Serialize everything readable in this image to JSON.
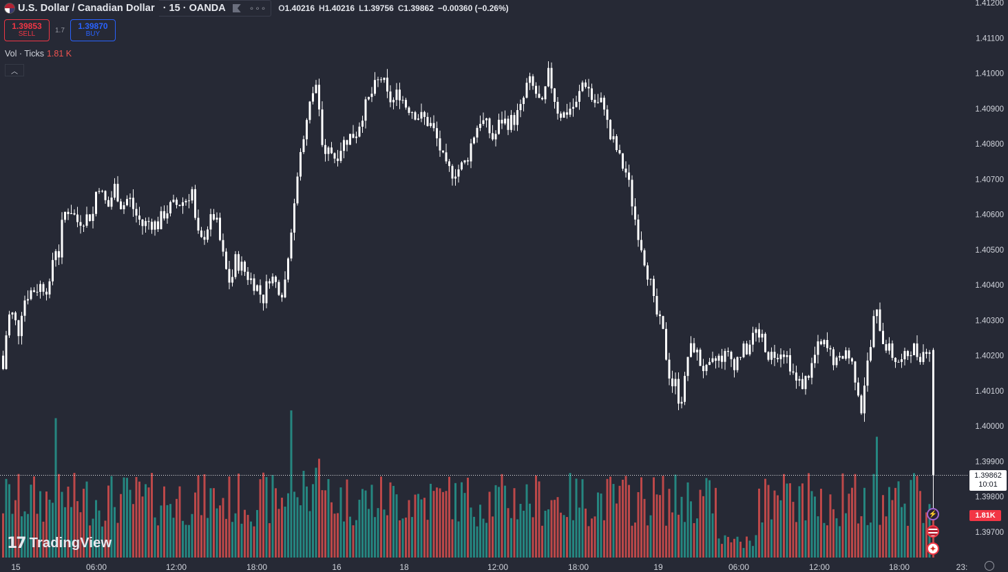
{
  "header": {
    "symbol": "U.S. Dollar / Canadian Dollar",
    "interval_source": "· 15 · OANDA",
    "ohlc": {
      "o_label": "O",
      "o": "1.40216",
      "h_label": "H",
      "h": "1.40216",
      "l_label": "L",
      "l": "1.39756",
      "c_label": "C",
      "c": "1.39862",
      "change": "−0.00360 (−0.26%)"
    }
  },
  "trade": {
    "sell_price": "1.39853",
    "sell_label": "SELL",
    "spread": "1.7",
    "buy_price": "1.39870",
    "buy_label": "BUY"
  },
  "volume_legend": {
    "label": "Vol · Ticks",
    "value": "1.81 K"
  },
  "price_axis": {
    "labels": [
      "1.41200",
      "1.41100",
      "1.41000",
      "1.40900",
      "1.40800",
      "1.40700",
      "1.40600",
      "1.40500",
      "1.40400",
      "1.40300",
      "1.40200",
      "1.40100",
      "1.40000",
      "1.39900",
      "1.39800",
      "1.39700"
    ]
  },
  "time_axis": {
    "labels": [
      "15",
      "06:00",
      "12:00",
      "18:00",
      "16",
      "18",
      "12:00",
      "18:00",
      "19",
      "06:00",
      "12:00",
      "18:00",
      "23:"
    ]
  },
  "last_price": {
    "price": "1.39862",
    "countdown": "10:01"
  },
  "last_volume": "1.81K",
  "brand": {
    "name": "TradingView",
    "mark": "17"
  },
  "colors": {
    "bg": "#262935",
    "up": "#26a69a",
    "down": "#ef5350",
    "candle": "#ffffff",
    "sell": "#f23645",
    "buy": "#2962ff"
  },
  "chart_data": {
    "type": "candlestick",
    "price_range": [
      1.3963,
      1.4123
    ],
    "close_path": [
      [
        0,
        1.402
      ],
      [
        6,
        1.4013
      ],
      [
        12,
        1.4026
      ],
      [
        18,
        1.4033
      ],
      [
        24,
        1.403
      ],
      [
        30,
        1.4027
      ],
      [
        36,
        1.4035
      ],
      [
        45,
        1.4038
      ],
      [
        55,
        1.4039
      ],
      [
        63,
        1.404
      ],
      [
        75,
        1.4039
      ],
      [
        82,
        1.4052
      ],
      [
        88,
        1.4048
      ],
      [
        95,
        1.406
      ],
      [
        105,
        1.4062
      ],
      [
        115,
        1.4058
      ],
      [
        125,
        1.4059
      ],
      [
        138,
        1.406
      ],
      [
        145,
        1.407
      ],
      [
        152,
        1.4065
      ],
      [
        160,
        1.4062
      ],
      [
        170,
        1.4068
      ],
      [
        180,
        1.4062
      ],
      [
        190,
        1.4065
      ],
      [
        200,
        1.406
      ],
      [
        210,
        1.4057
      ],
      [
        220,
        1.4058
      ],
      [
        232,
        1.4057
      ],
      [
        240,
        1.406
      ],
      [
        250,
        1.4062
      ],
      [
        262,
        1.4063
      ],
      [
        272,
        1.4064
      ],
      [
        282,
        1.4067
      ],
      [
        288,
        1.4055
      ],
      [
        295,
        1.4052
      ],
      [
        305,
        1.4057
      ],
      [
        315,
        1.406
      ],
      [
        322,
        1.4053
      ],
      [
        330,
        1.4045
      ],
      [
        338,
        1.404
      ],
      [
        345,
        1.4047
      ],
      [
        355,
        1.4045
      ],
      [
        365,
        1.4042
      ],
      [
        375,
        1.404
      ],
      [
        385,
        1.4036
      ],
      [
        395,
        1.4043
      ],
      [
        405,
        1.404
      ],
      [
        415,
        1.4038
      ],
      [
        422,
        1.405
      ],
      [
        428,
        1.406
      ],
      [
        434,
        1.4068
      ],
      [
        440,
        1.4078
      ],
      [
        446,
        1.4083
      ],
      [
        452,
        1.409
      ],
      [
        458,
        1.4095
      ],
      [
        464,
        1.4098
      ],
      [
        470,
        1.4079
      ],
      [
        476,
        1.4075
      ],
      [
        482,
        1.4079
      ],
      [
        490,
        1.4076
      ],
      [
        500,
        1.408
      ],
      [
        510,
        1.4082
      ],
      [
        520,
        1.4083
      ],
      [
        530,
        1.4089
      ],
      [
        540,
        1.4093
      ],
      [
        550,
        1.4097
      ],
      [
        558,
        1.4099
      ],
      [
        566,
        1.4093
      ],
      [
        574,
        1.4092
      ],
      [
        582,
        1.4095
      ],
      [
        592,
        1.4091
      ],
      [
        600,
        1.409
      ],
      [
        610,
        1.4088
      ],
      [
        620,
        1.4087
      ],
      [
        630,
        1.4085
      ],
      [
        640,
        1.408
      ],
      [
        650,
        1.4073
      ],
      [
        660,
        1.4072
      ],
      [
        670,
        1.4073
      ],
      [
        680,
        1.4075
      ],
      [
        690,
        1.4082
      ],
      [
        700,
        1.4087
      ],
      [
        710,
        1.4085
      ],
      [
        720,
        1.4081
      ],
      [
        730,
        1.4087
      ],
      [
        740,
        1.4086
      ],
      [
        750,
        1.4087
      ],
      [
        760,
        1.409
      ],
      [
        770,
        1.4098
      ],
      [
        780,
        1.4095
      ],
      [
        790,
        1.409
      ],
      [
        800,
        1.41
      ],
      [
        806,
        1.4095
      ],
      [
        812,
        1.409
      ],
      [
        820,
        1.4088
      ],
      [
        830,
        1.409
      ],
      [
        840,
        1.4091
      ],
      [
        850,
        1.4098
      ],
      [
        856,
        1.4097
      ],
      [
        862,
        1.4093
      ],
      [
        870,
        1.4091
      ],
      [
        880,
        1.4092
      ],
      [
        888,
        1.4082
      ],
      [
        896,
        1.408
      ],
      [
        904,
        1.4075
      ],
      [
        912,
        1.4072
      ],
      [
        918,
        1.4067
      ],
      [
        924,
        1.406
      ],
      [
        930,
        1.4055
      ],
      [
        936,
        1.405
      ],
      [
        942,
        1.4045
      ],
      [
        948,
        1.404
      ],
      [
        954,
        1.4033
      ],
      [
        960,
        1.403
      ],
      [
        966,
        1.4026
      ],
      [
        972,
        1.4018
      ],
      [
        978,
        1.4012
      ],
      [
        984,
        1.4012
      ],
      [
        990,
        1.4007
      ],
      [
        996,
        1.401
      ],
      [
        1002,
        1.402
      ],
      [
        1010,
        1.4023
      ],
      [
        1020,
        1.4018
      ],
      [
        1030,
        1.4015
      ],
      [
        1040,
        1.4018
      ],
      [
        1050,
        1.402
      ],
      [
        1060,
        1.402
      ],
      [
        1070,
        1.4018
      ],
      [
        1080,
        1.4021
      ],
      [
        1090,
        1.4022
      ],
      [
        1100,
        1.4027
      ],
      [
        1110,
        1.4025
      ],
      [
        1120,
        1.402
      ],
      [
        1130,
        1.4021
      ],
      [
        1140,
        1.4022
      ],
      [
        1150,
        1.4018
      ],
      [
        1160,
        1.4012
      ],
      [
        1170,
        1.4012
      ],
      [
        1180,
        1.4016
      ],
      [
        1190,
        1.4022
      ],
      [
        1200,
        1.4023
      ],
      [
        1210,
        1.402
      ],
      [
        1220,
        1.4017
      ],
      [
        1230,
        1.4022
      ],
      [
        1240,
        1.4018
      ],
      [
        1248,
        1.4012
      ],
      [
        1254,
        1.4005
      ],
      [
        1260,
        1.4015
      ],
      [
        1266,
        1.402
      ],
      [
        1272,
        1.403
      ],
      [
        1278,
        1.4032
      ],
      [
        1284,
        1.4025
      ],
      [
        1290,
        1.4023
      ],
      [
        1296,
        1.4021
      ],
      [
        1304,
        1.4019
      ],
      [
        1312,
        1.4018
      ],
      [
        1320,
        1.402
      ],
      [
        1328,
        1.4023
      ],
      [
        1336,
        1.402
      ],
      [
        1344,
        1.4021
      ],
      [
        1350,
        1.4023
      ],
      [
        1354,
        1.40216
      ]
    ],
    "last_candle": {
      "open": 1.40216,
      "high": 1.40216,
      "low": 1.39756,
      "close": 1.39862
    },
    "volume_spikes": [
      [
        81,
        0.9
      ],
      [
        421,
        0.95
      ],
      [
        1272,
        0.78
      ],
      [
        1254,
        0.45
      ],
      [
        440,
        0.56
      ],
      [
        460,
        0.58
      ],
      [
        646,
        0.43
      ]
    ]
  }
}
